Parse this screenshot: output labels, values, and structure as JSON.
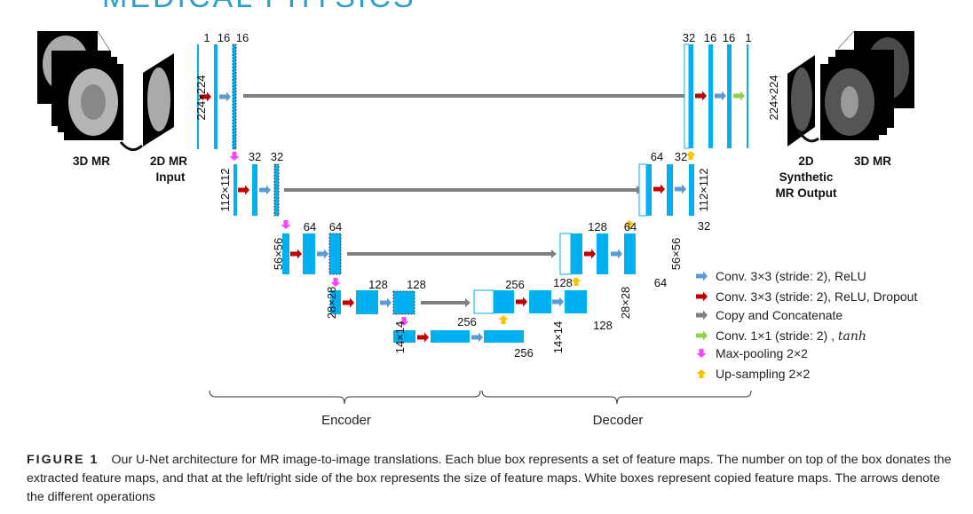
{
  "journal_header": "MEDICAL PHYSICS",
  "input": {
    "label_3d": "3D MR",
    "label_2d_line1": "2D MR",
    "label_2d_line2": "Input"
  },
  "output": {
    "label_2d_line1": "2D",
    "label_2d_line2": "Synthetic",
    "label_2d_line3": "MR Output",
    "label_3d": "3D MR"
  },
  "levels": {
    "l1": {
      "size": "224×224",
      "enc": [
        "1",
        "16",
        "16"
      ],
      "dec": [
        "32",
        "16",
        "16",
        "1"
      ]
    },
    "l2": {
      "size": "112×112",
      "enc": [
        "32",
        "32"
      ],
      "dec": [
        "64",
        "32",
        "32"
      ]
    },
    "l3": {
      "size": "56×56",
      "enc": [
        "64",
        "64"
      ],
      "dec": [
        "128",
        "64",
        "64"
      ]
    },
    "l4": {
      "size": "28×28",
      "enc": [
        "128",
        "128"
      ],
      "dec": [
        "256",
        "128",
        "128"
      ]
    },
    "l5": {
      "size": "14×14",
      "enc": [
        "256"
      ],
      "dec": [
        "256"
      ]
    }
  },
  "legend": [
    {
      "label": "Conv. 3×3 (stride: 2), ReLU",
      "color": "#5b9bd5",
      "icon": "arrow-right"
    },
    {
      "label": "Conv. 3×3 (stride: 2), ReLU, Dropout",
      "color": "#c00000",
      "icon": "arrow-right"
    },
    {
      "label": "Copy and Concatenate",
      "color": "#808080",
      "icon": "arrow-right"
    },
    {
      "label": "Conv. 1×1 (stride: 2) , ",
      "label_italic": "tanh",
      "color": "#92d050",
      "icon": "arrow-right"
    },
    {
      "label": "Max-pooling 2×2",
      "color": "#ff40ff",
      "icon": "arrow-down"
    },
    {
      "label": "Up-sampling 2×2",
      "color": "#ffc000",
      "icon": "arrow-up"
    }
  ],
  "braces": {
    "encoder": "Encoder",
    "decoder": "Decoder"
  },
  "colors": {
    "feature_map": "#00b0f0",
    "copied_map": "#ffffff"
  },
  "caption": {
    "figure_label": "FIGURE 1",
    "text": "Our U-Net architecture for MR image-to-image translations. Each blue box represents a set of feature maps. The number on top of the box donates the extracted feature maps, and that at the left/right side of the box represents the size of feature maps. White boxes represent copied feature maps. The arrows denote the different operations"
  }
}
